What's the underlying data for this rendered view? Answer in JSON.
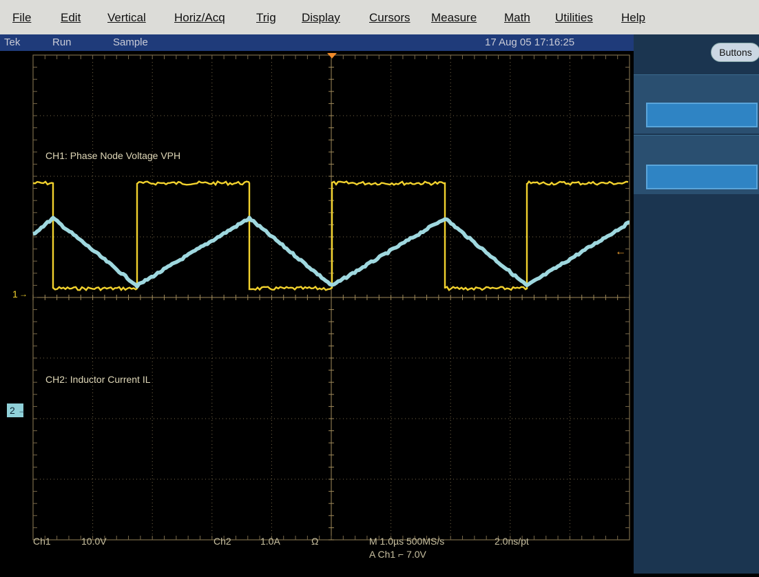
{
  "menu": {
    "items": [
      "File",
      "Edit",
      "Vertical",
      "Horiz/Acq",
      "Trig",
      "Display",
      "Cursors",
      "Measure",
      "Math",
      "Utilities",
      "Help"
    ]
  },
  "status": {
    "brand": "Tek",
    "run_state": "Run",
    "acq_mode": "Sample",
    "datetime": "17 Aug 05 17:16:25"
  },
  "side_panel": {
    "buttons_label": "Buttons"
  },
  "channels": {
    "ch1": {
      "label": "CH1: Phase Node Voltage VPH",
      "marker": "1",
      "color": "#f2d22e"
    },
    "ch2": {
      "label": "CH2: Inductor Current IL",
      "marker": "2",
      "color": "#9fd8df"
    }
  },
  "readout": {
    "ch1_name": "Ch1",
    "ch1_scale": "10.0V",
    "ch2_name": "Ch2",
    "ch2_scale": "1.0A",
    "ch2_coupling": "Ω",
    "timebase": "M 1.0µs 500MS/s",
    "resolution": "2.0ns/pt",
    "trigger": "A  Ch1  ⌐  7.0V"
  },
  "colors": {
    "grid": "#7a6a4a",
    "readout_text": "#c8c0a0",
    "trigger_marker": "#f08a2a"
  }
}
